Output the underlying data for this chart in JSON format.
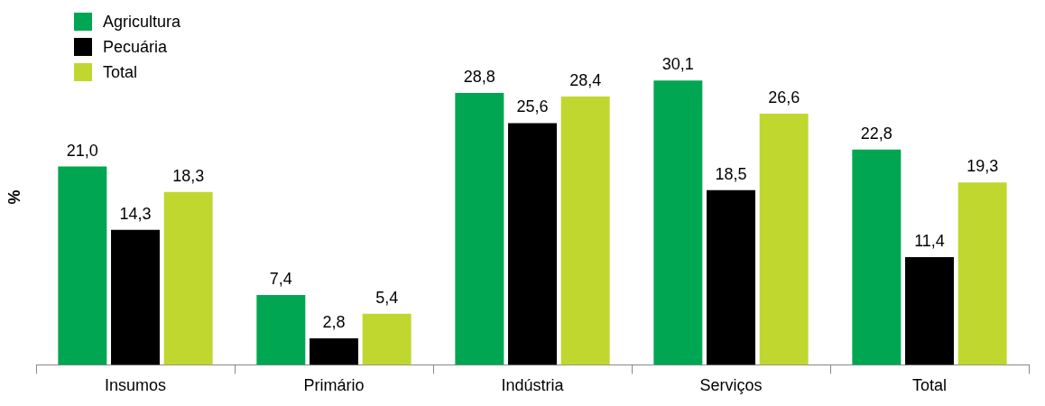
{
  "chart_data": {
    "type": "bar",
    "ylabel": "%",
    "categories": [
      "Insumos",
      "Primário",
      "Indústria",
      "Serviços",
      "Total"
    ],
    "legend": "top left",
    "series": [
      {
        "name": "Agricultura",
        "color": "#00a651",
        "values": [
          21.0,
          7.4,
          28.8,
          30.1,
          22.8
        ],
        "value_labels": [
          "21,0",
          "7,4",
          "28,8",
          "30,1",
          "22,8"
        ]
      },
      {
        "name": "Pecuária",
        "color": "#000000",
        "values": [
          14.3,
          2.8,
          25.6,
          18.5,
          11.4
        ],
        "value_labels": [
          "14,3",
          "2,8",
          "25,6",
          "18,5",
          "11,4"
        ]
      },
      {
        "name": "Total",
        "color": "#c0d72f",
        "values": [
          18.3,
          5.4,
          28.4,
          26.6,
          19.3
        ],
        "value_labels": [
          "18,3",
          "5,4",
          "28,4",
          "26,6",
          "19,3"
        ]
      }
    ]
  }
}
